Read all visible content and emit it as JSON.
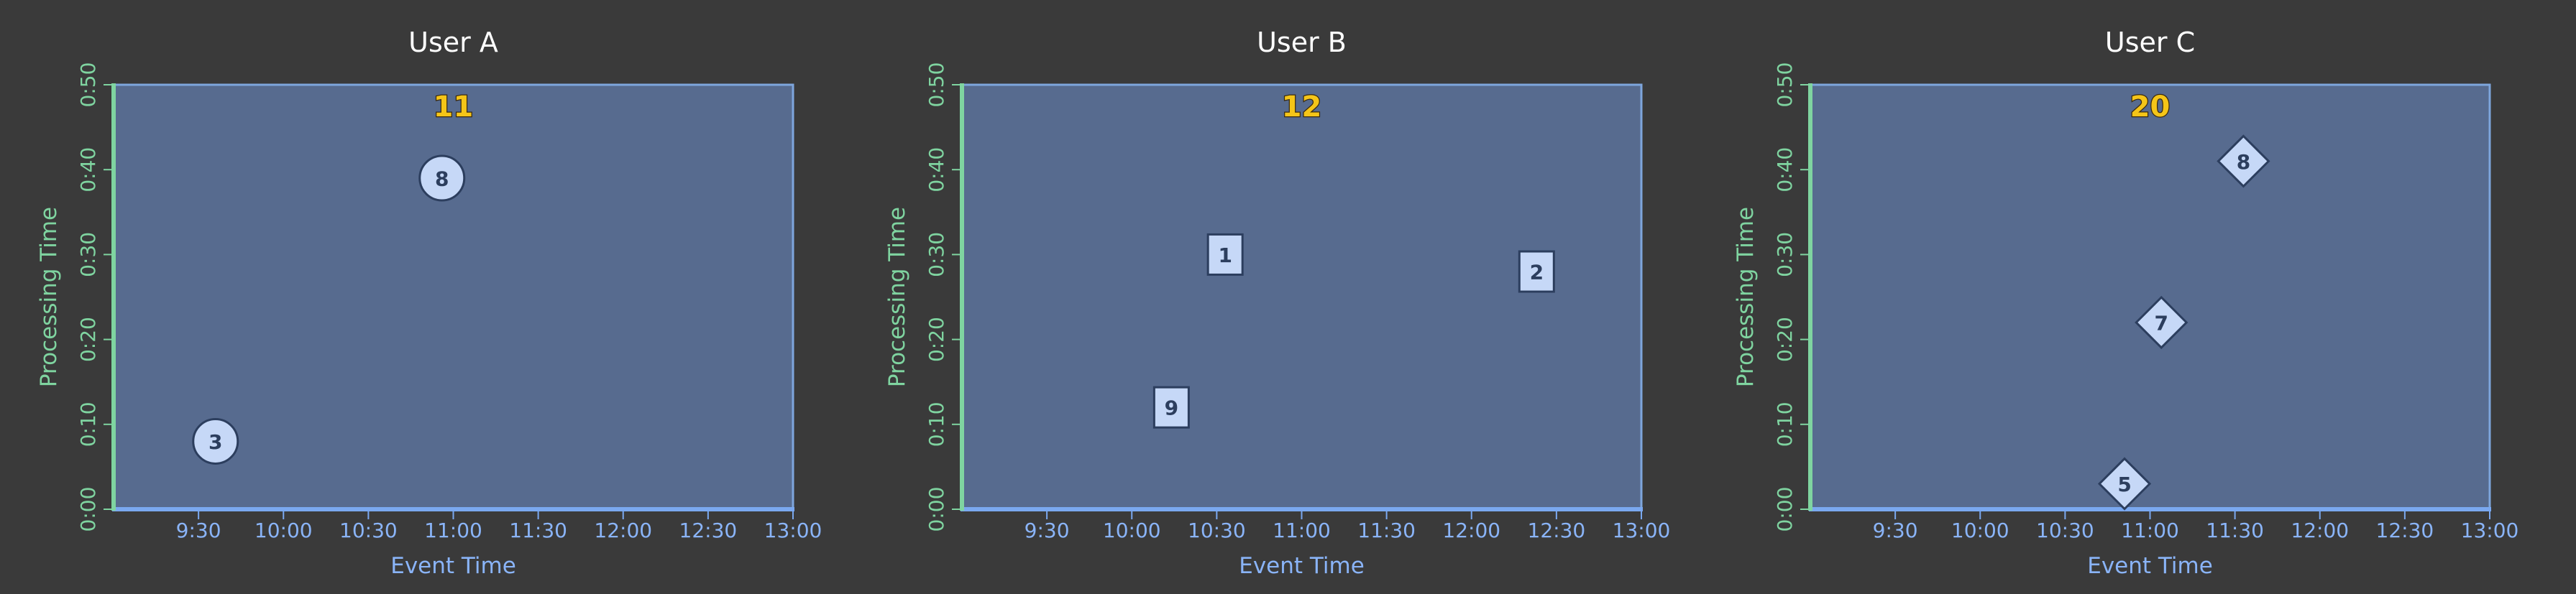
{
  "chart_data": [
    {
      "type": "scatter",
      "title": "User A",
      "xlabel": "Event Time",
      "ylabel": "Processing Time",
      "x_ticks": [
        "9:30",
        "10:00",
        "10:30",
        "11:00",
        "11:30",
        "12:00",
        "12:30",
        "13:00"
      ],
      "y_ticks": [
        "0:00",
        "0:10",
        "0:20",
        "0:30",
        "0:40",
        "0:50"
      ],
      "xlim": [
        "9:00",
        "13:00"
      ],
      "ylim": [
        "0:00",
        "0:50"
      ],
      "grid": false,
      "marker": "circle",
      "total": "11",
      "points": [
        {
          "x": "9:36",
          "y": "0:08",
          "label": "3"
        },
        {
          "x": "10:56",
          "y": "0:39",
          "label": "8"
        }
      ]
    },
    {
      "type": "scatter",
      "title": "User B",
      "xlabel": "Event Time",
      "ylabel": "Processing Time",
      "x_ticks": [
        "9:30",
        "10:00",
        "10:30",
        "11:00",
        "11:30",
        "12:00",
        "12:30",
        "13:00"
      ],
      "y_ticks": [
        "0:00",
        "0:10",
        "0:20",
        "0:30",
        "0:40",
        "0:50"
      ],
      "xlim": [
        "9:00",
        "13:00"
      ],
      "ylim": [
        "0:00",
        "0:50"
      ],
      "grid": false,
      "marker": "square",
      "total": "12",
      "points": [
        {
          "x": "10:14",
          "y": "0:12",
          "label": "9"
        },
        {
          "x": "10:33",
          "y": "0:30",
          "label": "1"
        },
        {
          "x": "12:23",
          "y": "0:28",
          "label": "2"
        }
      ]
    },
    {
      "type": "scatter",
      "title": "User C",
      "xlabel": "Event Time",
      "ylabel": "Processing Time",
      "x_ticks": [
        "9:30",
        "10:00",
        "10:30",
        "11:00",
        "11:30",
        "12:00",
        "12:30",
        "13:00"
      ],
      "y_ticks": [
        "0:00",
        "0:10",
        "0:20",
        "0:30",
        "0:40",
        "0:50"
      ],
      "xlim": [
        "9:00",
        "13:00"
      ],
      "ylim": [
        "0:00",
        "0:50"
      ],
      "grid": false,
      "marker": "diamond",
      "total": "20",
      "points": [
        {
          "x": "10:51",
          "y": "0:03",
          "label": "5"
        },
        {
          "x": "11:04",
          "y": "0:22",
          "label": "7"
        },
        {
          "x": "11:33",
          "y": "0:41",
          "label": "8"
        }
      ]
    }
  ]
}
